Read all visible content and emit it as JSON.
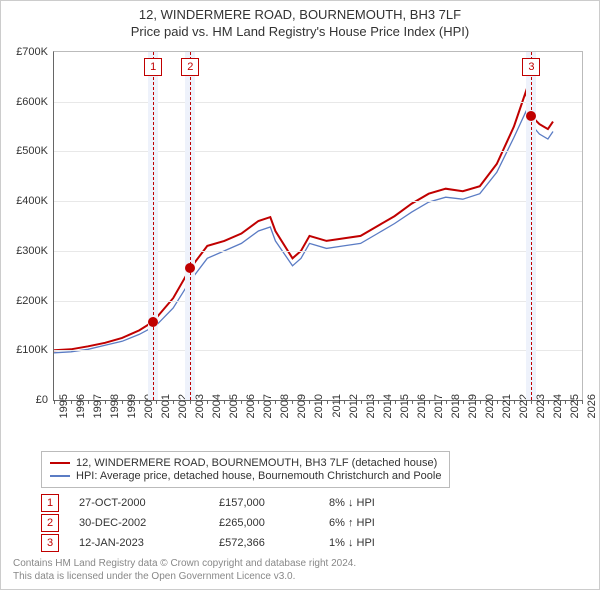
{
  "title_line1": "12, WINDERMERE ROAD, BOURNEMOUTH, BH3 7LF",
  "title_line2": "Price paid vs. HM Land Registry's House Price Index (HPI)",
  "chart": {
    "type": "line",
    "background_color": "#ffffff",
    "grid_color": "#e8e8e8",
    "axis_color": "#666666",
    "font_size": 11,
    "x_min": 1995,
    "x_max": 2026,
    "x_step": 1,
    "y_min": 0,
    "y_max": 700000,
    "y_step": 100000,
    "y_labels": [
      "£0",
      "£100K",
      "£200K",
      "£300K",
      "£400K",
      "£500K",
      "£600K",
      "£700K"
    ],
    "x_labels": [
      "1995",
      "1996",
      "1997",
      "1998",
      "1999",
      "2000",
      "2001",
      "2002",
      "2003",
      "2004",
      "2005",
      "2006",
      "2007",
      "2008",
      "2009",
      "2010",
      "2011",
      "2012",
      "2013",
      "2014",
      "2015",
      "2016",
      "2017",
      "2018",
      "2019",
      "2020",
      "2021",
      "2022",
      "2023",
      "2024",
      "2025",
      "2026"
    ],
    "series": [
      {
        "name": "property",
        "label": "12, WINDERMERE ROAD, BOURNEMOUTH, BH3 7LF (detached house)",
        "color": "#c00000",
        "width": 2,
        "data": [
          [
            1995,
            100000
          ],
          [
            1996,
            102000
          ],
          [
            1997,
            108000
          ],
          [
            1998,
            115000
          ],
          [
            1999,
            125000
          ],
          [
            2000,
            140000
          ],
          [
            2000.8,
            157000
          ],
          [
            2001,
            165000
          ],
          [
            2002,
            205000
          ],
          [
            2003,
            265000
          ],
          [
            2004,
            310000
          ],
          [
            2005,
            320000
          ],
          [
            2006,
            335000
          ],
          [
            2007,
            360000
          ],
          [
            2007.7,
            368000
          ],
          [
            2008,
            340000
          ],
          [
            2009,
            285000
          ],
          [
            2009.5,
            300000
          ],
          [
            2010,
            330000
          ],
          [
            2011,
            320000
          ],
          [
            2012,
            325000
          ],
          [
            2013,
            330000
          ],
          [
            2014,
            350000
          ],
          [
            2015,
            370000
          ],
          [
            2016,
            395000
          ],
          [
            2017,
            415000
          ],
          [
            2018,
            425000
          ],
          [
            2019,
            420000
          ],
          [
            2020,
            430000
          ],
          [
            2021,
            475000
          ],
          [
            2022,
            550000
          ],
          [
            2022.7,
            620000
          ],
          [
            2023,
            572000
          ],
          [
            2023.5,
            555000
          ],
          [
            2024,
            545000
          ],
          [
            2024.3,
            560000
          ]
        ]
      },
      {
        "name": "hpi",
        "label": "HPI: Average price, detached house, Bournemouth Christchurch and Poole",
        "color": "#5b7cc4",
        "width": 1.3,
        "data": [
          [
            1995,
            95000
          ],
          [
            1996,
            97000
          ],
          [
            1997,
            102000
          ],
          [
            1998,
            110000
          ],
          [
            1999,
            118000
          ],
          [
            2000,
            132000
          ],
          [
            2001,
            150000
          ],
          [
            2002,
            185000
          ],
          [
            2003,
            240000
          ],
          [
            2004,
            285000
          ],
          [
            2005,
            300000
          ],
          [
            2006,
            315000
          ],
          [
            2007,
            340000
          ],
          [
            2007.7,
            348000
          ],
          [
            2008,
            320000
          ],
          [
            2009,
            270000
          ],
          [
            2009.5,
            285000
          ],
          [
            2010,
            315000
          ],
          [
            2011,
            305000
          ],
          [
            2012,
            310000
          ],
          [
            2013,
            315000
          ],
          [
            2014,
            335000
          ],
          [
            2015,
            355000
          ],
          [
            2016,
            378000
          ],
          [
            2017,
            398000
          ],
          [
            2018,
            408000
          ],
          [
            2019,
            404000
          ],
          [
            2020,
            415000
          ],
          [
            2021,
            458000
          ],
          [
            2022,
            528000
          ],
          [
            2022.7,
            580000
          ],
          [
            2023,
            555000
          ],
          [
            2023.5,
            535000
          ],
          [
            2024,
            525000
          ],
          [
            2024.3,
            540000
          ]
        ]
      }
    ],
    "event_bands": [
      {
        "x": 2000.8,
        "width_years": 0.6
      },
      {
        "x": 2003.0,
        "width_years": 0.6
      },
      {
        "x": 2023.0,
        "width_years": 0.6
      }
    ],
    "event_markers": [
      {
        "num": "1",
        "x": 2000.82,
        "y": 157000
      },
      {
        "num": "2",
        "x": 2003.0,
        "y": 265000
      },
      {
        "num": "3",
        "x": 2023.03,
        "y": 572000
      }
    ],
    "band_color": "#eef2fb",
    "event_line_color": "#c00000",
    "marker_color": "#c00000"
  },
  "events": [
    {
      "num": "1",
      "date": "27-OCT-2000",
      "price": "£157,000",
      "hpi": "8% ↓ HPI"
    },
    {
      "num": "2",
      "date": "30-DEC-2002",
      "price": "£265,000",
      "hpi": "6% ↑ HPI"
    },
    {
      "num": "3",
      "date": "12-JAN-2023",
      "price": "£572,366",
      "hpi": "1% ↓ HPI"
    }
  ],
  "footer_line1": "Contains HM Land Registry data © Crown copyright and database right 2024.",
  "footer_line2": "This data is licensed under the Open Government Licence v3.0."
}
